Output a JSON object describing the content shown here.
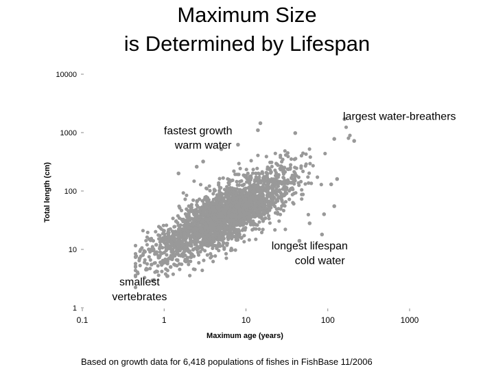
{
  "title_line1": "Maximum Size",
  "title_line2": "is Determined by Lifespan",
  "footer": "Based on growth data for 6,418 populations of fishes in FishBase 11/2006",
  "chart_data": {
    "type": "scatter",
    "xlabel": "Maximum age (years)",
    "ylabel": "Total length (cm)",
    "x_scale": "log",
    "y_scale": "log",
    "xlim": [
      0.1,
      1000
    ],
    "ylim": [
      1,
      10000
    ],
    "x_ticks": [
      0.1,
      1,
      10,
      100,
      1000
    ],
    "x_tick_labels": [
      "0.1",
      "1",
      "10",
      "100",
      "1000"
    ],
    "y_ticks": [
      1,
      10,
      100,
      1000,
      10000
    ],
    "y_tick_labels": [
      "1",
      "10",
      "100",
      "1000",
      "10000"
    ],
    "grid": false,
    "point_color": "#999999",
    "annotations": [
      {
        "text": "largest water-breathers",
        "x": 150,
        "y": 1650
      },
      {
        "text": "fastest growth",
        "x": 2.6,
        "y": 930
      },
      {
        "text": "warm water",
        "x": 3.0,
        "y": 530
      },
      {
        "text": "longest lifespan",
        "x": 60,
        "y": 10
      },
      {
        "text": "cold water",
        "x": 80,
        "y": 5.6
      },
      {
        "text": "smallest",
        "x": 0.5,
        "y": 2.4
      },
      {
        "text": "vertebrates",
        "x": 0.5,
        "y": 1.35
      }
    ],
    "outliers": [
      {
        "x": 160,
        "y": 1700
      },
      {
        "x": 15,
        "y": 1450
      },
      {
        "x": 14,
        "y": 1100
      },
      {
        "x": 120,
        "y": 780
      },
      {
        "x": 210,
        "y": 720
      },
      {
        "x": 8,
        "y": 620
      },
      {
        "x": 5,
        "y": 520
      },
      {
        "x": 40,
        "y": 980
      },
      {
        "x": 3,
        "y": 320
      },
      {
        "x": 2.5,
        "y": 260
      },
      {
        "x": 1.5,
        "y": 200
      },
      {
        "x": 0.55,
        "y": 8
      },
      {
        "x": 0.6,
        "y": 4.5
      },
      {
        "x": 0.7,
        "y": 5.5
      },
      {
        "x": 0.9,
        "y": 6
      },
      {
        "x": 1.1,
        "y": 3.5
      },
      {
        "x": 0.8,
        "y": 12
      },
      {
        "x": 1.0,
        "y": 15
      },
      {
        "x": 60,
        "y": 28
      },
      {
        "x": 90,
        "y": 40
      },
      {
        "x": 120,
        "y": 55
      },
      {
        "x": 110,
        "y": 130
      },
      {
        "x": 130,
        "y": 160
      },
      {
        "x": 85,
        "y": 18
      },
      {
        "x": 45,
        "y": 14
      },
      {
        "x": 0.65,
        "y": 10
      },
      {
        "x": 1.3,
        "y": 9
      },
      {
        "x": 0.75,
        "y": 3
      },
      {
        "x": 1.2,
        "y": 5
      },
      {
        "x": 0.5,
        "y": 7
      }
    ],
    "cloud": {
      "n_points": 2600,
      "log10_age_mean": 0.75,
      "log10_age_sd": 0.42,
      "log10_length_intercept": 1.05,
      "log10_length_slope": 0.72,
      "log10_length_resid_sd": 0.24
    }
  }
}
